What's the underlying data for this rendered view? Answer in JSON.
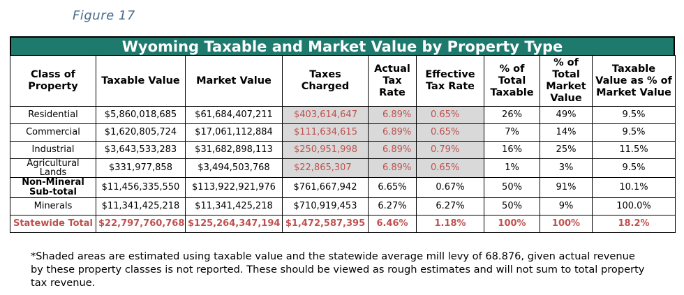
{
  "caption": "Figure 17",
  "title": "Wyoming Taxable and Market Value by Property Type",
  "headers": [
    "Class of Property",
    "Taxable Value",
    "Market Value",
    "Taxes Charged",
    "Actual Tax Rate",
    "Effective Tax Rate",
    "% of Total Taxable",
    "% of Total Market Value",
    "Taxable Value as % of Market Value"
  ],
  "rows": [
    {
      "cls": "Residential",
      "taxable": "$5,860,018,685",
      "market": "$61,684,407,211",
      "taxes": "$403,614,647",
      "actual": "6.89%",
      "effective": "0.65%",
      "pct_taxable": "26%",
      "pct_market": "49%",
      "ratio": "9.5%"
    },
    {
      "cls": "Commercial",
      "taxable": "$1,620,805,724",
      "market": "$17,061,112,884",
      "taxes": "$111,634,615",
      "actual": "6.89%",
      "effective": "0.65%",
      "pct_taxable": "7%",
      "pct_market": "14%",
      "ratio": "9.5%"
    },
    {
      "cls": "Industrial",
      "taxable": "$3,643,533,283",
      "market": "$31,682,898,113",
      "taxes": "$250,951,998",
      "actual": "6.89%",
      "effective": "0.79%",
      "pct_taxable": "16%",
      "pct_market": "25%",
      "ratio": "11.5%"
    },
    {
      "cls": "Agricultural Lands",
      "taxable": "$331,977,858",
      "market": "$3,494,503,768",
      "taxes": "$22,865,307",
      "actual": "6.89%",
      "effective": "0.65%",
      "pct_taxable": "1%",
      "pct_market": "3%",
      "ratio": "9.5%"
    },
    {
      "cls": "Non-Mineral Sub-total",
      "taxable": "$11,456,335,550",
      "market": "$113,922,921,976",
      "taxes": "$761,667,942",
      "actual": "6.65%",
      "effective": "0.67%",
      "pct_taxable": "50%",
      "pct_market": "91%",
      "ratio": "10.1%"
    },
    {
      "cls": "Minerals",
      "taxable": "$11,341,425,218",
      "market": "$11,341,425,218",
      "taxes": "$710,919,453",
      "actual": "6.27%",
      "effective": "6.27%",
      "pct_taxable": "50%",
      "pct_market": "9%",
      "ratio": "100.0%"
    },
    {
      "cls": "Statewide Total",
      "taxable": "$22,797,760,768",
      "market": "$125,264,347,194",
      "taxes": "$1,472,587,395",
      "actual": "6.46%",
      "effective": "1.18%",
      "pct_taxable": "100%",
      "pct_market": "100%",
      "ratio": "18.2%"
    }
  ],
  "footnote": "*Shaded areas are estimated using taxable value and the statewide average mill levy of 68.876, given actual revenue by these property classes is not reported. These should be viewed as rough estimates and will not sum to total property tax revenue.",
  "colors": {
    "title_bg": "#1f7a6e",
    "shaded_bg": "#d9d9d9",
    "highlight_text": "#c0504d"
  }
}
